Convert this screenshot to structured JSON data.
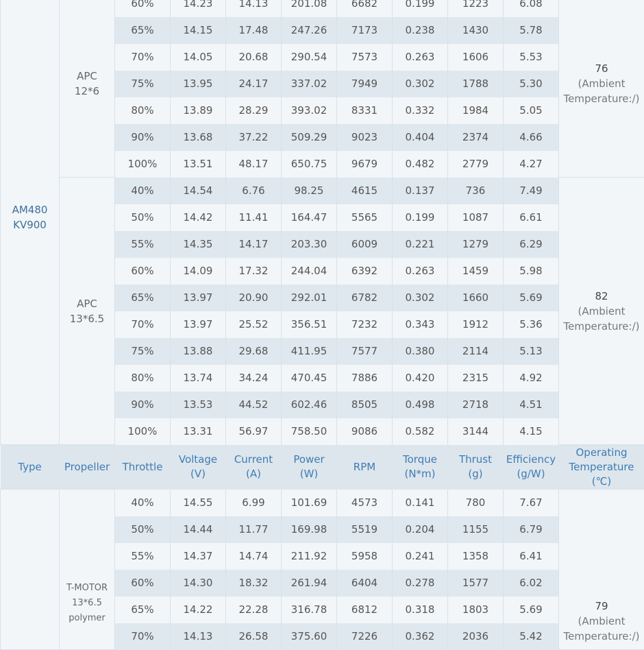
{
  "header": [
    "Type",
    "Propeller",
    "Throttle",
    "Voltage\n(V)",
    "Current\n(A)",
    "Power\n(W)",
    "RPM",
    "Torque\n(N*m)",
    "Thrust\n(g)",
    "Efficiency\n(g/W)",
    "Operating\nTemperature\n(℃)"
  ],
  "top_block": {
    "type": "AM480\nKV900",
    "groups": [
      {
        "propeller": "APC\n12*6",
        "temp": "76",
        "temp_note": "(Ambient\nTemperature:/)",
        "rows": [
          [
            "60%",
            "14.23",
            "14.13",
            "201.08",
            "6682",
            "0.199",
            "1223",
            "6.08"
          ],
          [
            "65%",
            "14.15",
            "17.48",
            "247.26",
            "7173",
            "0.238",
            "1430",
            "5.78"
          ],
          [
            "70%",
            "14.05",
            "20.68",
            "290.54",
            "7573",
            "0.263",
            "1606",
            "5.53"
          ],
          [
            "75%",
            "13.95",
            "24.17",
            "337.02",
            "7949",
            "0.302",
            "1788",
            "5.30"
          ],
          [
            "80%",
            "13.89",
            "28.29",
            "393.02",
            "8331",
            "0.332",
            "1984",
            "5.05"
          ],
          [
            "90%",
            "13.68",
            "37.22",
            "509.29",
            "9023",
            "0.404",
            "2374",
            "4.66"
          ],
          [
            "100%",
            "13.51",
            "48.17",
            "650.75",
            "9679",
            "0.482",
            "2779",
            "4.27"
          ]
        ]
      },
      {
        "propeller": "APC\n13*6.5",
        "temp": "82",
        "temp_note": "(Ambient\nTemperature:/)",
        "rows": [
          [
            "40%",
            "14.54",
            "6.76",
            "98.25",
            "4615",
            "0.137",
            "736",
            "7.49"
          ],
          [
            "50%",
            "14.42",
            "11.41",
            "164.47",
            "5565",
            "0.199",
            "1087",
            "6.61"
          ],
          [
            "55%",
            "14.35",
            "14.17",
            "203.30",
            "6009",
            "0.221",
            "1279",
            "6.29"
          ],
          [
            "60%",
            "14.09",
            "17.32",
            "244.04",
            "6392",
            "0.263",
            "1459",
            "5.98"
          ],
          [
            "65%",
            "13.97",
            "20.90",
            "292.01",
            "6782",
            "0.302",
            "1660",
            "5.69"
          ],
          [
            "70%",
            "13.97",
            "25.52",
            "356.51",
            "7232",
            "0.343",
            "1912",
            "5.36"
          ],
          [
            "75%",
            "13.88",
            "29.68",
            "411.95",
            "7577",
            "0.380",
            "2114",
            "5.13"
          ],
          [
            "80%",
            "13.74",
            "34.24",
            "470.45",
            "7886",
            "0.420",
            "2315",
            "4.92"
          ],
          [
            "90%",
            "13.53",
            "44.52",
            "602.46",
            "8505",
            "0.498",
            "2718",
            "4.51"
          ],
          [
            "100%",
            "13.31",
            "56.97",
            "758.50",
            "9086",
            "0.582",
            "3144",
            "4.15"
          ]
        ]
      }
    ]
  },
  "bottom_block": {
    "propeller": "T-MOTOR\n13*6.5\npolymer",
    "temp": "79",
    "temp_note": "(Ambient\nTemperature:/)",
    "rows": [
      [
        "40%",
        "14.55",
        "6.99",
        "101.69",
        "4573",
        "0.141",
        "780",
        "7.67"
      ],
      [
        "50%",
        "14.44",
        "11.77",
        "169.98",
        "5519",
        "0.204",
        "1155",
        "6.79"
      ],
      [
        "55%",
        "14.37",
        "14.74",
        "211.92",
        "5958",
        "0.241",
        "1358",
        "6.41"
      ],
      [
        "60%",
        "14.30",
        "18.32",
        "261.94",
        "6404",
        "0.278",
        "1577",
        "6.02"
      ],
      [
        "65%",
        "14.22",
        "22.28",
        "316.78",
        "6812",
        "0.318",
        "1803",
        "5.69"
      ],
      [
        "70%",
        "14.13",
        "26.58",
        "375.60",
        "7226",
        "0.362",
        "2036",
        "5.42"
      ]
    ]
  }
}
